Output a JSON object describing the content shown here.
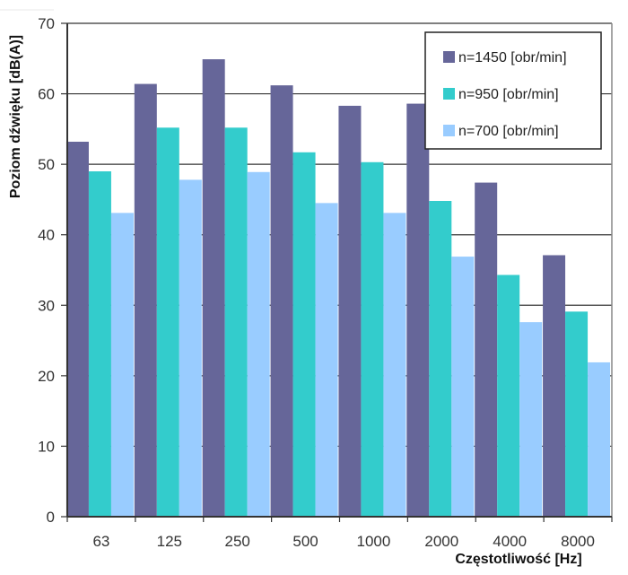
{
  "chart_data": {
    "type": "bar",
    "title": "",
    "xlabel": "Częstotliwość [Hz]",
    "ylabel": "Poziom dźwięku [dB(A)]",
    "categories": [
      "63",
      "125",
      "250",
      "500",
      "1000",
      "2000",
      "4000",
      "8000"
    ],
    "series": [
      {
        "name": "n=1450 [obr/min]",
        "color": "#666699",
        "values": [
          53.2,
          61.4,
          64.9,
          61.2,
          58.3,
          58.6,
          47.4,
          37.1
        ]
      },
      {
        "name": "n=950 [obr/min]",
        "color": "#33CCCC",
        "values": [
          49.0,
          55.2,
          55.2,
          51.7,
          50.3,
          44.8,
          34.3,
          29.1
        ]
      },
      {
        "name": "n=700 [obr/min]",
        "color": "#99CCFF",
        "values": [
          43.1,
          47.8,
          48.9,
          44.5,
          43.1,
          36.9,
          27.6,
          21.9
        ]
      }
    ],
    "ylim": [
      0,
      70
    ],
    "yticks": [
      0,
      10,
      20,
      30,
      40,
      50,
      60,
      70
    ],
    "grid": true,
    "legend_position": "top-right"
  }
}
